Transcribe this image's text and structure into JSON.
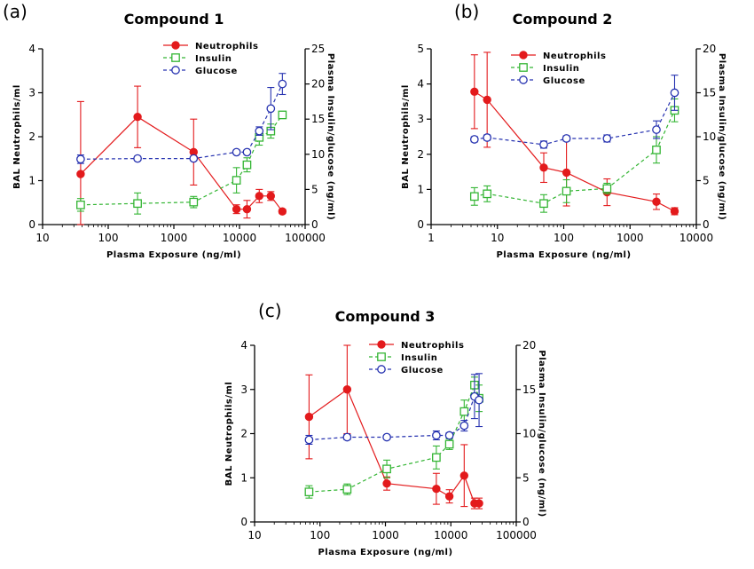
{
  "figure": {
    "panels": [
      "(a)",
      "(b)",
      "(c)"
    ]
  },
  "colors": {
    "neutrophils": "#e31a1c",
    "insulin": "#33b533",
    "glucose": "#2632b0",
    "axis": "#000000"
  },
  "chart_data": [
    {
      "type": "line",
      "panel": "(a)",
      "title": "Compound 1",
      "xlabel": "Plasma Exposure (ng/ml)",
      "ylabel": "BAL Neutrophils/ml",
      "y2label": "Plasma Insulin/glucose (ng/ml)",
      "xscale": "log",
      "xlim": [
        10,
        100000
      ],
      "ylim": [
        0,
        4
      ],
      "y2lim": [
        0,
        25
      ],
      "xticks": [
        "10",
        "100",
        "1000",
        "10000",
        "100000"
      ],
      "yticks": [
        "0",
        "1",
        "2",
        "3",
        "4"
      ],
      "y2ticks": [
        "0",
        "5",
        "10",
        "15",
        "20",
        "25"
      ],
      "legend_position": "top-right",
      "series": [
        {
          "name": "Neutrophils",
          "axis": "left",
          "marker": "filled-circle",
          "style": "solid",
          "x": [
            38,
            280,
            2000,
            9000,
            13000,
            20000,
            30000,
            45000
          ],
          "y": [
            1.15,
            2.45,
            1.65,
            0.35,
            0.35,
            0.65,
            0.65,
            0.3
          ],
          "err": [
            1.65,
            0.7,
            0.75,
            0.1,
            0.2,
            0.15,
            0.1,
            0.05
          ]
        },
        {
          "name": "Insulin",
          "axis": "right",
          "marker": "open-square",
          "style": "dashed",
          "x": [
            38,
            280,
            2000,
            9000,
            13000,
            20000,
            30000,
            45000
          ],
          "y": [
            2.8,
            3.0,
            3.2,
            6.3,
            8.5,
            12.4,
            13.3,
            15.6
          ],
          "err": [
            0.9,
            1.5,
            0.8,
            1.8,
            1.0,
            1.1,
            1.0,
            0.5
          ]
        },
        {
          "name": "Glucose",
          "axis": "right",
          "marker": "open-circle",
          "style": "dashed",
          "x": [
            38,
            280,
            2000,
            9000,
            13000,
            20000,
            30000,
            45000
          ],
          "y": [
            9.3,
            9.4,
            9.4,
            10.3,
            10.3,
            13.3,
            16.5,
            20.0
          ],
          "err": [
            0.6,
            0.3,
            0.3,
            0.3,
            0.3,
            0.6,
            3.0,
            1.5
          ]
        }
      ]
    },
    {
      "type": "line",
      "panel": "(b)",
      "title": "Compound 2",
      "xlabel": "Plasma Exposure (ng/ml)",
      "ylabel": "BAL Neutrophils/ml",
      "y2label": "Plasma Insulin/glucose (ng/ml)",
      "xscale": "log",
      "xlim": [
        1,
        10000
      ],
      "ylim": [
        0,
        5
      ],
      "y2lim": [
        0,
        20
      ],
      "xticks": [
        "1",
        "10",
        "100",
        "1000",
        "10000"
      ],
      "yticks": [
        "0",
        "1",
        "2",
        "3",
        "4",
        "5"
      ],
      "y2ticks": [
        "0",
        "5",
        "10",
        "15",
        "20"
      ],
      "legend_position": "top-right",
      "series": [
        {
          "name": "Neutrophils",
          "axis": "left",
          "marker": "filled-circle",
          "style": "solid",
          "x": [
            4.5,
            7,
            50,
            110,
            450,
            2500,
            4700
          ],
          "y": [
            3.78,
            3.55,
            1.62,
            1.48,
            0.92,
            0.65,
            0.38
          ],
          "err": [
            1.05,
            1.35,
            0.42,
            0.95,
            0.38,
            0.22,
            0.1
          ]
        },
        {
          "name": "Insulin",
          "axis": "right",
          "marker": "open-square",
          "style": "dashed",
          "x": [
            4.5,
            7,
            50,
            110,
            450,
            2500,
            4700
          ],
          "y": [
            3.2,
            3.5,
            2.4,
            3.8,
            4.1,
            8.5,
            13.0
          ],
          "err": [
            1.0,
            0.9,
            1.0,
            1.3,
            0.6,
            1.5,
            1.3
          ]
        },
        {
          "name": "Glucose",
          "axis": "right",
          "marker": "open-circle",
          "style": "dashed",
          "x": [
            4.5,
            7,
            50,
            110,
            450,
            2500,
            4700
          ],
          "y": [
            9.7,
            9.9,
            9.1,
            9.8,
            9.8,
            10.8,
            15.0
          ],
          "err": [
            0.3,
            0.3,
            0.4,
            0.3,
            0.4,
            1.0,
            2.0
          ]
        }
      ]
    },
    {
      "type": "line",
      "panel": "(c)",
      "title": "Compound 3",
      "xlabel": "Plasma Exposure (ng/ml)",
      "ylabel": "BAL Neutrophils/ml",
      "y2label": "Plasma Insulin/glucose (ng/ml)",
      "xscale": "log",
      "xlim": [
        10,
        100000
      ],
      "ylim": [
        0,
        4
      ],
      "y2lim": [
        0,
        20
      ],
      "xticks": [
        "10",
        "100",
        "1000",
        "10000",
        "100000"
      ],
      "yticks": [
        "0",
        "1",
        "2",
        "3",
        "4"
      ],
      "y2ticks": [
        "0",
        "5",
        "10",
        "15",
        "20"
      ],
      "legend_position": "top-right",
      "series": [
        {
          "name": "Neutrophils",
          "axis": "left",
          "marker": "filled-circle",
          "style": "solid",
          "x": [
            68,
            260,
            1050,
            6000,
            9500,
            16000,
            23000,
            27000
          ],
          "y": [
            2.38,
            3.0,
            0.87,
            0.75,
            0.58,
            1.05,
            0.42,
            0.42
          ],
          "err": [
            0.95,
            1.0,
            0.15,
            0.35,
            0.15,
            0.7,
            0.12,
            0.12
          ]
        },
        {
          "name": "Insulin",
          "axis": "right",
          "marker": "open-square",
          "style": "dashed",
          "x": [
            68,
            260,
            1050,
            6000,
            9500,
            16000,
            23000,
            27000
          ],
          "y": [
            3.4,
            3.7,
            6.0,
            7.3,
            8.8,
            12.5,
            15.5,
            14.0
          ],
          "err": [
            0.7,
            0.6,
            1.0,
            1.3,
            0.6,
            1.3,
            0.9,
            1.5
          ]
        },
        {
          "name": "Glucose",
          "axis": "right",
          "marker": "open-circle",
          "style": "dashed",
          "x": [
            68,
            260,
            1050,
            6000,
            9500,
            16000,
            23000,
            27000
          ],
          "y": [
            9.3,
            9.6,
            9.6,
            9.8,
            9.8,
            10.9,
            14.2,
            13.8
          ],
          "err": [
            0.5,
            0.3,
            0.2,
            0.5,
            0.3,
            0.6,
            2.5,
            3.0
          ]
        }
      ]
    }
  ]
}
